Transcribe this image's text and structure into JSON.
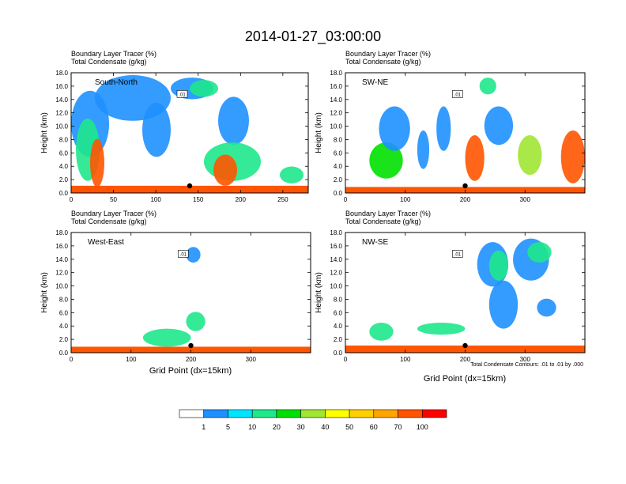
{
  "title": "2014-01-27_03:00:00",
  "footnote": "Total Condensate Contours: .01 to .01 by .000",
  "contour_label": ".01",
  "colorbar": {
    "labels": [
      "1",
      "5",
      "10",
      "20",
      "30",
      "40",
      "50",
      "60",
      "70",
      "100"
    ],
    "colors": [
      "#ffffff",
      "#1e90ff",
      "#00e5ff",
      "#1ee88c",
      "#00e000",
      "#a0e632",
      "#ffff00",
      "#ffd000",
      "#ffa500",
      "#ff5500",
      "#ff0000"
    ]
  },
  "chart_data": [
    {
      "type": "heatmap",
      "name": "South-North",
      "subtitle1": "Boundary Layer Tracer    (%)",
      "subtitle2": "Total Condensate   (g/kg)",
      "ylabel": "Height (km)",
      "xlabel": "",
      "xlim": [
        0,
        280
      ],
      "ylim": [
        0,
        18
      ],
      "xticks": [
        "0",
        "50",
        "100",
        "150",
        "200",
        "250"
      ],
      "yticks": [
        "0.0",
        "2.0",
        "4.0",
        "6.0",
        "8.0",
        "10.0",
        "12.0",
        "14.0",
        "16.0",
        "18.0"
      ],
      "marker_x": 140
    },
    {
      "type": "heatmap",
      "name": "SW-NE",
      "subtitle1": "Boundary Layer Tracer    (%)",
      "subtitle2": "Total Condensate   (g/kg)",
      "ylabel": "Height (km)",
      "xlabel": "",
      "xlim": [
        0,
        400
      ],
      "ylim": [
        0,
        18
      ],
      "xticks": [
        "0",
        "100",
        "200",
        "300"
      ],
      "yticks": [
        "0.0",
        "2.0",
        "4.0",
        "6.0",
        "8.0",
        "10.0",
        "12.0",
        "14.0",
        "16.0",
        "18.0"
      ],
      "marker_x": 200
    },
    {
      "type": "heatmap",
      "name": "West-East",
      "subtitle1": "Boundary Layer Tracer    (%)",
      "subtitle2": "Total Condensate   (g/kg)",
      "ylabel": "Height (km)",
      "xlabel": "Grid Point (dx=15km)",
      "xlim": [
        0,
        400
      ],
      "ylim": [
        0,
        18
      ],
      "xticks": [
        "0",
        "100",
        "200",
        "300"
      ],
      "yticks": [
        "0.0",
        "2.0",
        "4.0",
        "6.0",
        "8.0",
        "10.0",
        "12.0",
        "14.0",
        "16.0",
        "18.0"
      ],
      "marker_x": 200
    },
    {
      "type": "heatmap",
      "name": "NW-SE",
      "subtitle1": "Boundary Layer Tracer    (%)",
      "subtitle2": "Total Condensate   (g/kg)",
      "ylabel": "Height (km)",
      "xlabel": "Grid Point (dx=15km)",
      "xlim": [
        0,
        400
      ],
      "ylim": [
        0,
        18
      ],
      "xticks": [
        "0",
        "100",
        "200",
        "300"
      ],
      "yticks": [
        "0.0",
        "2.0",
        "4.0",
        "6.0",
        "8.0",
        "10.0",
        "12.0",
        "14.0",
        "16.0",
        "18.0"
      ],
      "marker_x": 200
    }
  ]
}
